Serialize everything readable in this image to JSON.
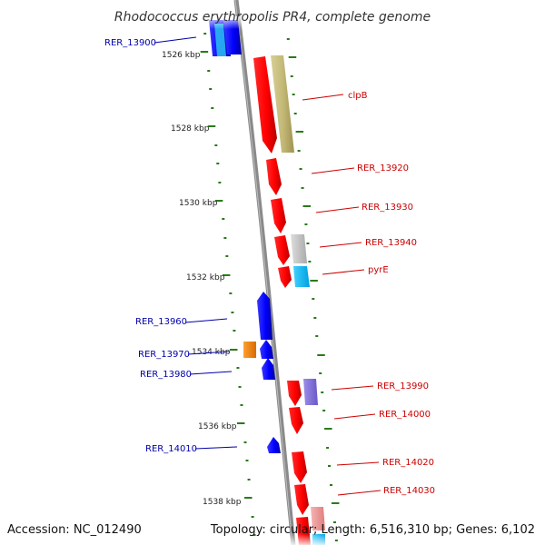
{
  "title": "Rhodococcus erythropolis PR4, complete genome",
  "footer": {
    "accession": "Accession: NC_012490",
    "summary": "Topology: circular; Length: 6,516,310 bp; Genes: 6,102"
  },
  "colors": {
    "forward_label": "#cc0000",
    "reverse_label": "#0000aa",
    "tick": "#2a7a1a",
    "backbone": "#8a8a8a"
  },
  "ticks": [
    "1526 kbp",
    "1528 kbp",
    "1530 kbp",
    "1532 kbp",
    "1534 kbp",
    "1536 kbp",
    "1538 kbp"
  ],
  "genes": [
    {
      "name": "RER_13900",
      "strand": "reverse"
    },
    {
      "name": "clpB",
      "strand": "forward"
    },
    {
      "name": "RER_13920",
      "strand": "forward"
    },
    {
      "name": "RER_13930",
      "strand": "forward"
    },
    {
      "name": "RER_13940",
      "strand": "forward"
    },
    {
      "name": "pyrE",
      "strand": "forward"
    },
    {
      "name": "RER_13960",
      "strand": "reverse"
    },
    {
      "name": "RER_13970",
      "strand": "reverse"
    },
    {
      "name": "RER_13980",
      "strand": "reverse"
    },
    {
      "name": "RER_13990",
      "strand": "forward"
    },
    {
      "name": "RER_14000",
      "strand": "forward"
    },
    {
      "name": "RER_14010",
      "strand": "reverse"
    },
    {
      "name": "RER_14020",
      "strand": "forward"
    },
    {
      "name": "RER_14030",
      "strand": "forward"
    }
  ]
}
